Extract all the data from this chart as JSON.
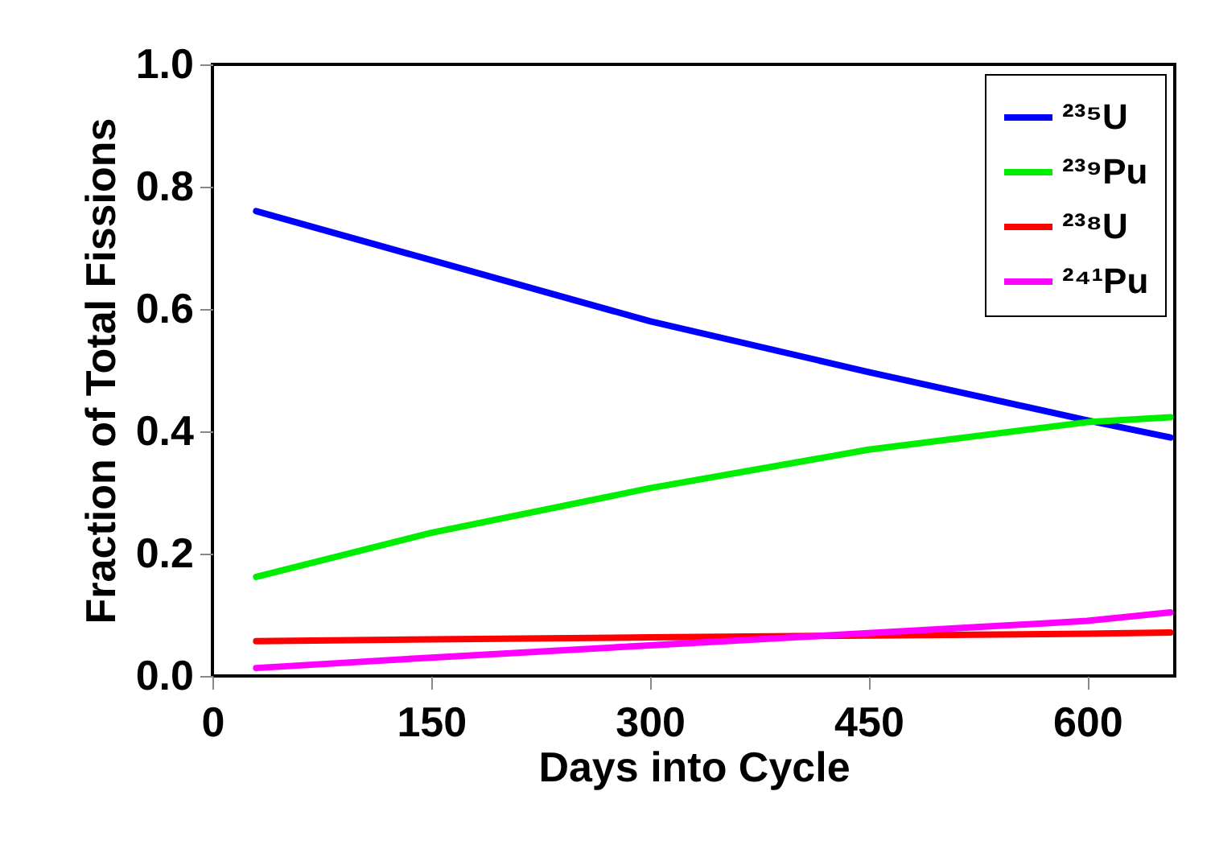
{
  "chart_data": {
    "type": "line",
    "xlabel": "Days into Cycle",
    "ylabel": "Fraction of Total Fissions",
    "x": [
      30,
      150,
      300,
      450,
      600,
      657
    ],
    "series": [
      {
        "name": "²³⁵U",
        "color": "#0000ff",
        "values": [
          0.76,
          0.68,
          0.58,
          0.497,
          0.418,
          0.39
        ]
      },
      {
        "name": "²³⁹Pu",
        "color": "#00ee00",
        "values": [
          0.162,
          0.234,
          0.307,
          0.37,
          0.415,
          0.423
        ]
      },
      {
        "name": "²³⁸U",
        "color": "#ff0000",
        "values": [
          0.057,
          0.06,
          0.063,
          0.066,
          0.069,
          0.071
        ]
      },
      {
        "name": "²⁴¹Pu",
        "color": "#ff00ff",
        "values": [
          0.013,
          0.03,
          0.05,
          0.07,
          0.09,
          0.104
        ]
      }
    ],
    "xlim": [
      0,
      660
    ],
    "xticks": [
      0,
      150,
      300,
      450,
      600
    ],
    "ylim": [
      0,
      1
    ],
    "yticks": [
      {
        "value": 0,
        "label": "0.0"
      },
      {
        "value": 0.2,
        "label": "0.2"
      },
      {
        "value": 0.4,
        "label": "0.4"
      },
      {
        "value": 0.6,
        "label": "0.6"
      },
      {
        "value": 0.8,
        "label": "0.8"
      },
      {
        "value": 1,
        "label": "1.0"
      }
    ],
    "legend": "top right",
    "grid": false,
    "marker": "none",
    "line_style": "solid"
  }
}
